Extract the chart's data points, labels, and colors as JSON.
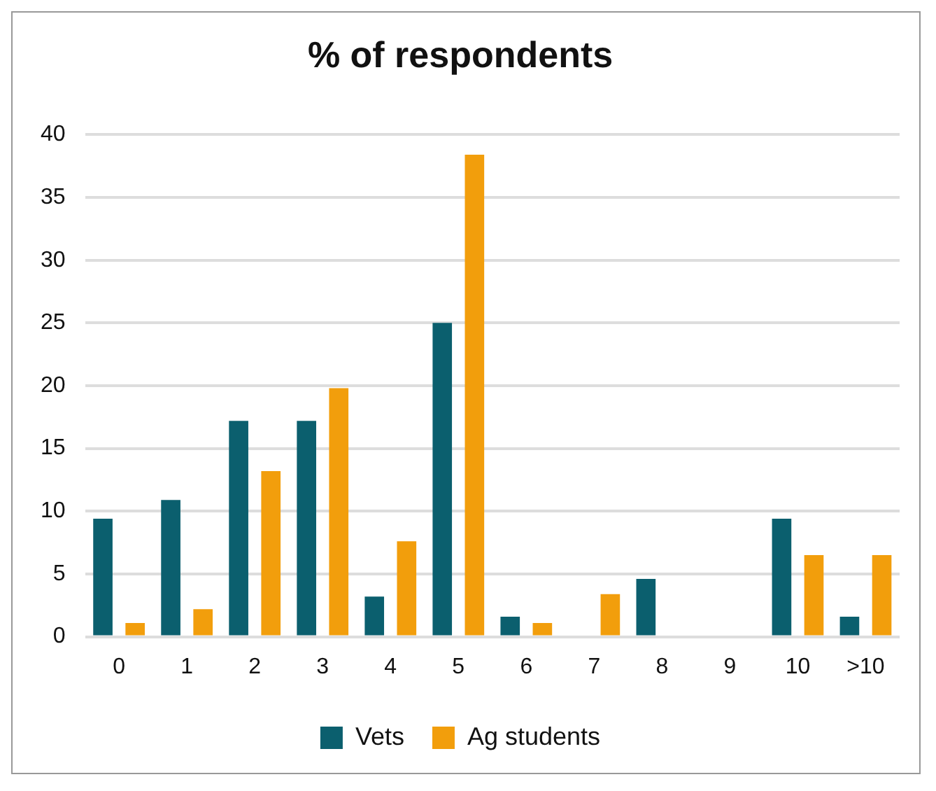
{
  "chart_data": {
    "type": "bar",
    "title": "% of respondents",
    "categories": [
      "0",
      "1",
      "2",
      "3",
      "4",
      "5",
      "6",
      "7",
      "8",
      "9",
      "10",
      ">10"
    ],
    "series": [
      {
        "name": "Vets",
        "color": "#0b5f6e",
        "values": [
          9.4,
          10.9,
          17.2,
          17.2,
          3.2,
          25,
          1.6,
          0,
          4.6,
          0,
          9.4,
          1.6
        ]
      },
      {
        "name": "Ag students",
        "color": "#f29e0c",
        "values": [
          1.1,
          2.2,
          13.2,
          19.8,
          7.6,
          38.4,
          1.1,
          3.4,
          0,
          0,
          6.5,
          6.5
        ]
      }
    ],
    "ylim": [
      0,
      40
    ],
    "yticks": [
      0,
      5,
      10,
      15,
      20,
      25,
      30,
      35,
      40
    ],
    "grid": "y",
    "legend": "bottom"
  }
}
